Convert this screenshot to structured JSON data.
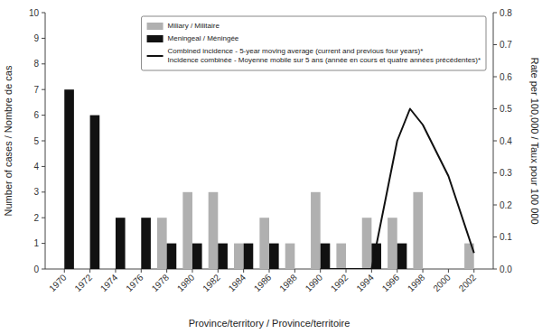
{
  "chart_data": {
    "type": "bar",
    "xlabel": "Province/territory / Province/territoire",
    "ylabel": "Number of cases / Nombre de cas",
    "y2label": "Rate per 100,000 / Taux pour 100 000",
    "x": [
      1970,
      1972,
      1974,
      1976,
      1978,
      1980,
      1982,
      1984,
      1986,
      1988,
      1990,
      1992,
      1994,
      1996,
      1998,
      2000,
      2002
    ],
    "xlim": [
      1968.5,
      2003.5
    ],
    "xticks": [
      1970,
      1972,
      1974,
      1976,
      1978,
      1980,
      1982,
      1984,
      1986,
      1988,
      1990,
      1992,
      1994,
      1996,
      1998,
      2000,
      2002
    ],
    "ylim": [
      0,
      10
    ],
    "yticks": [
      0,
      1,
      2,
      3,
      4,
      5,
      6,
      7,
      8,
      9,
      10
    ],
    "y2lim": [
      0,
      0.8
    ],
    "y2ticks": [
      {
        "value": 0.0,
        "label": "0.0"
      },
      0.1,
      0.2,
      0.3,
      0.4,
      0.5,
      0.6,
      0.7,
      0.8
    ],
    "grid": false,
    "legend": "upper right",
    "series": [
      {
        "name": "Miliary / Militaire",
        "type": "bar",
        "color": "#b0b0b0",
        "values": [
          0,
          0,
          0,
          0,
          2,
          3,
          3,
          1,
          2,
          1,
          3,
          1,
          2,
          2,
          3,
          0,
          1
        ]
      },
      {
        "name": "Meningeal / Méningée",
        "type": "bar",
        "color": "#111111",
        "values": [
          7,
          6,
          2,
          2,
          1,
          1,
          1,
          1,
          1,
          0,
          1,
          0,
          1,
          1,
          0,
          0,
          0
        ]
      },
      {
        "name": "Combined incidence - 5-year moving average (current and previous four years)*\nIncidence combinée - Moyenne mobile sur 5 ans (année en cours et quatre années précédentes)*",
        "type": "line",
        "axis": "y2",
        "color": "#111111",
        "x": [
          1990,
          1992,
          1994,
          1996,
          1997,
          1998,
          2000,
          2002
        ],
        "values": [
          0.0,
          0.0,
          0.0,
          0.4,
          0.5,
          0.45,
          0.29,
          0.05
        ]
      }
    ]
  }
}
